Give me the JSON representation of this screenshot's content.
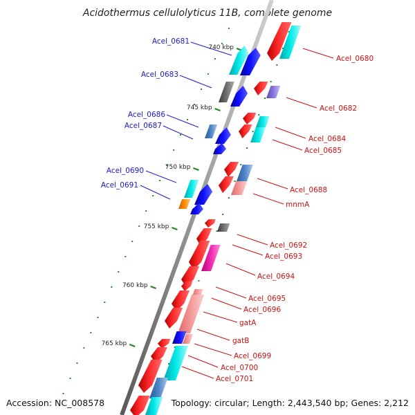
{
  "title": "Acidothermus cellulolyticus 11B, complete genome",
  "footer": {
    "accession": "Accession: NC_008578",
    "summary": "Topology: circular; Length: 2,443,540 bp; Genes: 2,212"
  },
  "colors": {
    "backbone": "#8a8a8a",
    "tick": "#1f8a1f",
    "label_blue": "#1a1acc",
    "label_red": "#cc1111",
    "red_gene": "#ff0000",
    "blue_gene": "#0000ee",
    "cyan_gene": "#00dddd",
    "gray_gene": "#666666",
    "pink_gene": "#ee8888",
    "magenta_gene": "#ee22aa",
    "steel_gene": "#4a7fbf",
    "orange_gene": "#ff8800",
    "lavender_gene": "#8877dd"
  },
  "ticks": [
    {
      "label": "740 kbp",
      "pos": 740
    },
    {
      "label": "745 kbp",
      "pos": 745
    },
    {
      "label": "750 kbp",
      "pos": 750
    },
    {
      "label": "755 kbp",
      "pos": 755
    },
    {
      "label": "760 kbp",
      "pos": 760
    },
    {
      "label": "765 kbp",
      "pos": 765
    }
  ],
  "labels_left": [
    {
      "text": "Acel_0681"
    },
    {
      "text": "Acel_0683"
    },
    {
      "text": "Acel_0686"
    },
    {
      "text": "Acel_0687"
    },
    {
      "text": "Acel_0690"
    },
    {
      "text": "Acel_0691"
    }
  ],
  "labels_right": [
    {
      "text": "Acel_0680"
    },
    {
      "text": "Acel_0682"
    },
    {
      "text": "Acel_0684"
    },
    {
      "text": "Acel_0685"
    },
    {
      "text": "Acel_0688"
    },
    {
      "text": "mnmA"
    },
    {
      "text": "Acel_0692"
    },
    {
      "text": "Acel_0693"
    },
    {
      "text": "Acel_0694"
    },
    {
      "text": "Acel_0695"
    },
    {
      "text": "Acel_0696"
    },
    {
      "text": "gatA"
    },
    {
      "text": "gatB"
    },
    {
      "text": "Acel_0699"
    },
    {
      "text": "Acel_0700"
    },
    {
      "text": "Acel_0701"
    }
  ]
}
